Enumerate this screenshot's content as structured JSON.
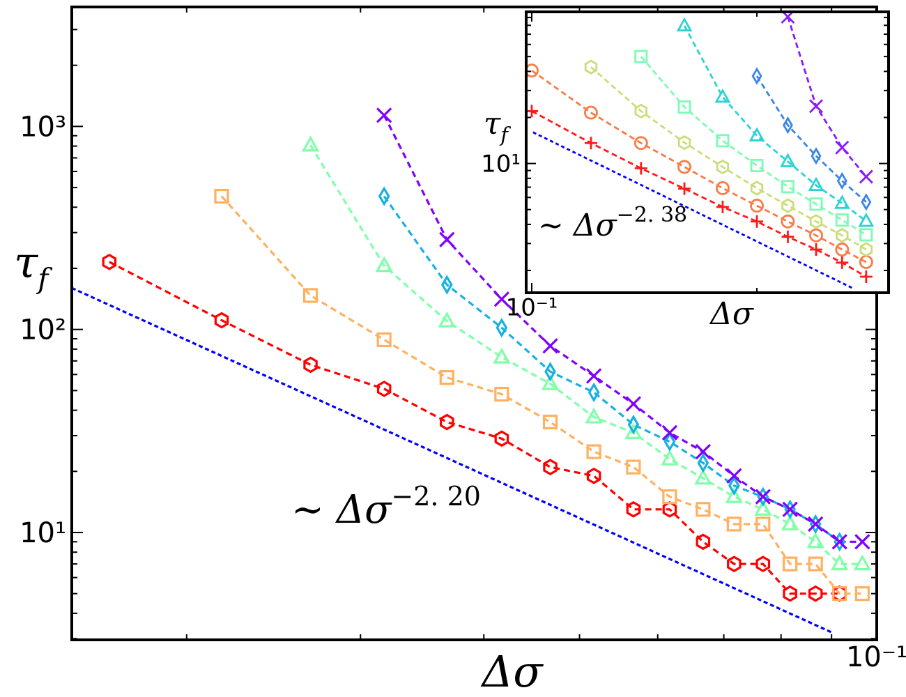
{
  "chart_data": [
    {
      "type": "line",
      "xscale": "log",
      "yscale": "log",
      "xlabel": "Δσ",
      "ylabel": {
        "symbol": "τ",
        "sub": "f"
      },
      "xlim": [
        0.0153,
        0.1
      ],
      "ylim": [
        2.96,
        3875
      ],
      "xticks": [
        {
          "value": 0.1,
          "label": "10⁻¹"
        }
      ],
      "xminorticks": [
        0.02,
        0.03,
        0.04,
        0.05,
        0.06,
        0.07,
        0.08,
        0.09
      ],
      "yticks": [
        {
          "value": 10,
          "label": "10¹"
        },
        {
          "value": 100,
          "label": "10²"
        },
        {
          "value": 1000,
          "label": "10³"
        }
      ],
      "yminorticks": [
        3,
        4,
        5,
        6,
        7,
        8,
        9,
        20,
        30,
        40,
        50,
        60,
        70,
        80,
        90,
        200,
        300,
        400,
        500,
        600,
        700,
        800,
        900,
        2000,
        3000
      ],
      "annotation": {
        "text": "∼ Δσ",
        "sup": "−2. 20"
      },
      "series": [
        {
          "color": "#0000ff",
          "style": "fit",
          "x": [
            0.0153,
            0.0903
          ],
          "values": [
            160,
            3.2
          ]
        },
        {
          "color": "#ff0000",
          "marker": "hexagon",
          "x": [
            0.0167,
            0.0217,
            0.0267,
            0.0317,
            0.0367,
            0.0417,
            0.0467,
            0.0517,
            0.0567,
            0.0617,
            0.0667,
            0.0717,
            0.0767,
            0.0817,
            0.0867,
            0.0917
          ],
          "values": [
            215,
            111,
            67,
            51,
            35,
            29,
            21,
            19,
            13,
            13,
            9,
            7,
            7,
            5,
            5,
            5
          ]
        },
        {
          "color": "#ffb060",
          "marker": "square",
          "x": [
            0.0217,
            0.0267,
            0.0317,
            0.0367,
            0.0417,
            0.0467,
            0.0517,
            0.0567,
            0.0617,
            0.0667,
            0.0717,
            0.0767,
            0.0817,
            0.0867,
            0.0917,
            0.0967
          ],
          "values": [
            453,
            147,
            89,
            58,
            48,
            35,
            25,
            21,
            15,
            13,
            11,
            11,
            7,
            7,
            5,
            5
          ]
        },
        {
          "color": "#80ffa8",
          "marker": "triangle",
          "x": [
            0.0267,
            0.0317,
            0.0367,
            0.0417,
            0.0467,
            0.0517,
            0.0567,
            0.0617,
            0.0667,
            0.0717,
            0.0767,
            0.0817,
            0.0867,
            0.0917,
            0.0967
          ],
          "values": [
            808,
            206,
            110,
            73,
            54,
            37,
            31,
            23,
            18.5,
            15,
            13,
            11,
            9,
            7,
            7
          ]
        },
        {
          "color": "#18b0e0",
          "marker": "diamond",
          "x": [
            0.0317,
            0.0367,
            0.0417,
            0.0467,
            0.0517,
            0.0567,
            0.0617,
            0.0667,
            0.0717,
            0.0767,
            0.0817,
            0.0867,
            0.0917
          ],
          "values": [
            453,
            166,
            102,
            62,
            49,
            34,
            28,
            22,
            17,
            15,
            13,
            11,
            9
          ]
        },
        {
          "color": "#8000ff",
          "marker": "x",
          "x": [
            0.0317,
            0.0367,
            0.0417,
            0.0467,
            0.0517,
            0.0567,
            0.0617,
            0.0667,
            0.0717,
            0.0767,
            0.0817,
            0.0867,
            0.0917,
            0.0967
          ],
          "values": [
            1135,
            277,
            141,
            83,
            59,
            43,
            31,
            25,
            19,
            15,
            13,
            11,
            9,
            9
          ]
        }
      ]
    },
    {
      "type": "line",
      "xscale": "log",
      "yscale": "log",
      "xlabel": "Δσ",
      "ylabel": {
        "symbol": "τ",
        "sub": "f"
      },
      "xlim": [
        0.0983,
        0.3
      ],
      "ylim": [
        1.43,
        98
      ],
      "xticks": [
        {
          "value": 0.1,
          "label": "10⁻¹"
        }
      ],
      "xminorticks": [
        0.2
      ],
      "yticks": [
        {
          "value": 10,
          "label": "10¹"
        }
      ],
      "yminorticks": [
        2,
        3,
        4,
        5,
        6,
        7,
        8,
        9,
        20,
        30,
        40,
        50,
        60,
        70,
        80,
        90
      ],
      "annotation": {
        "text": "∼ Δσ",
        "sup": "−2. 38"
      },
      "series": [
        {
          "color": "#0000ff",
          "style": "fit",
          "x": [
            0.1004,
            0.2695
          ],
          "values": [
            16,
            1.52
          ]
        },
        {
          "color": "#ff1a1a",
          "marker": "plus",
          "x": [
            0.1,
            0.12,
            0.14,
            0.16,
            0.18,
            0.2,
            0.22,
            0.24,
            0.26,
            0.28
          ],
          "values": [
            22,
            13.6,
            9.3,
            6.85,
            5.2,
            4.18,
            3.32,
            2.74,
            2.25,
            1.82
          ]
        },
        {
          "color": "#f97b45",
          "marker": "circle",
          "x": [
            0.1,
            0.12,
            0.14,
            0.16,
            0.18,
            0.2,
            0.22,
            0.24,
            0.26,
            0.28
          ],
          "values": [
            40.5,
            21.5,
            13.6,
            9.5,
            6.9,
            5.3,
            4.18,
            3.39,
            2.74,
            2.27
          ]
        },
        {
          "color": "#c9dd7a",
          "marker": "hexagon",
          "x": [
            0.12,
            0.14,
            0.16,
            0.18,
            0.2,
            0.22,
            0.24,
            0.26,
            0.28
          ],
          "values": [
            42.7,
            22,
            13.7,
            9.5,
            6.9,
            5.3,
            4.18,
            3.39,
            2.74
          ]
        },
        {
          "color": "#7dfbb5",
          "marker": "square",
          "x": [
            0.14,
            0.16,
            0.18,
            0.2,
            0.22,
            0.24,
            0.26,
            0.28
          ],
          "values": [
            50,
            23.4,
            14.1,
            9.7,
            7.06,
            5.43,
            4.27,
            3.42
          ]
        },
        {
          "color": "#2ad3d3",
          "marker": "triangle",
          "x": [
            0.16,
            0.18,
            0.2,
            0.22,
            0.24,
            0.26,
            0.28
          ],
          "values": [
            79.5,
            27.2,
            15.2,
            10.3,
            7.2,
            5.5,
            4.2
          ]
        },
        {
          "color": "#3a85e8",
          "marker": "diamond",
          "x": [
            0.2,
            0.22,
            0.24,
            0.26,
            0.28
          ],
          "values": [
            37.3,
            17.8,
            11.2,
            7.7,
            5.6
          ]
        },
        {
          "color": "#8a1aff",
          "marker": "x",
          "x": [
            0.22,
            0.24,
            0.26,
            0.28
          ],
          "values": [
            91,
            23.7,
            12.7,
            8.2
          ]
        }
      ]
    }
  ]
}
